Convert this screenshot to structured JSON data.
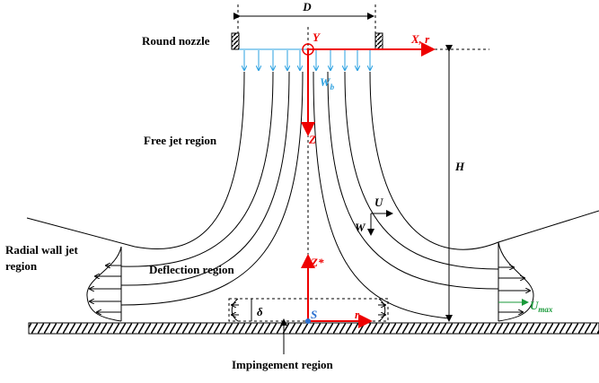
{
  "labels": {
    "diameter": "D",
    "nozzle": "Round nozzle",
    "y_axis": "Y",
    "x_axis": "X, r",
    "bulk_velocity": {
      "main": "W",
      "sub": "b"
    },
    "free_jet": "Free jet region",
    "z_axis": "Z",
    "height": "H",
    "u_velocity": "U",
    "w_velocity": "W",
    "radial_wall_jet": [
      "Radial  wall  jet",
      "region"
    ],
    "deflection": "Deflection region",
    "z_star": "Z*",
    "delta": "δ",
    "stagnation": "S",
    "r_axis": "r",
    "max_velocity": {
      "main": "U",
      "sub": "max"
    },
    "impingement": "Impingement region"
  }
}
